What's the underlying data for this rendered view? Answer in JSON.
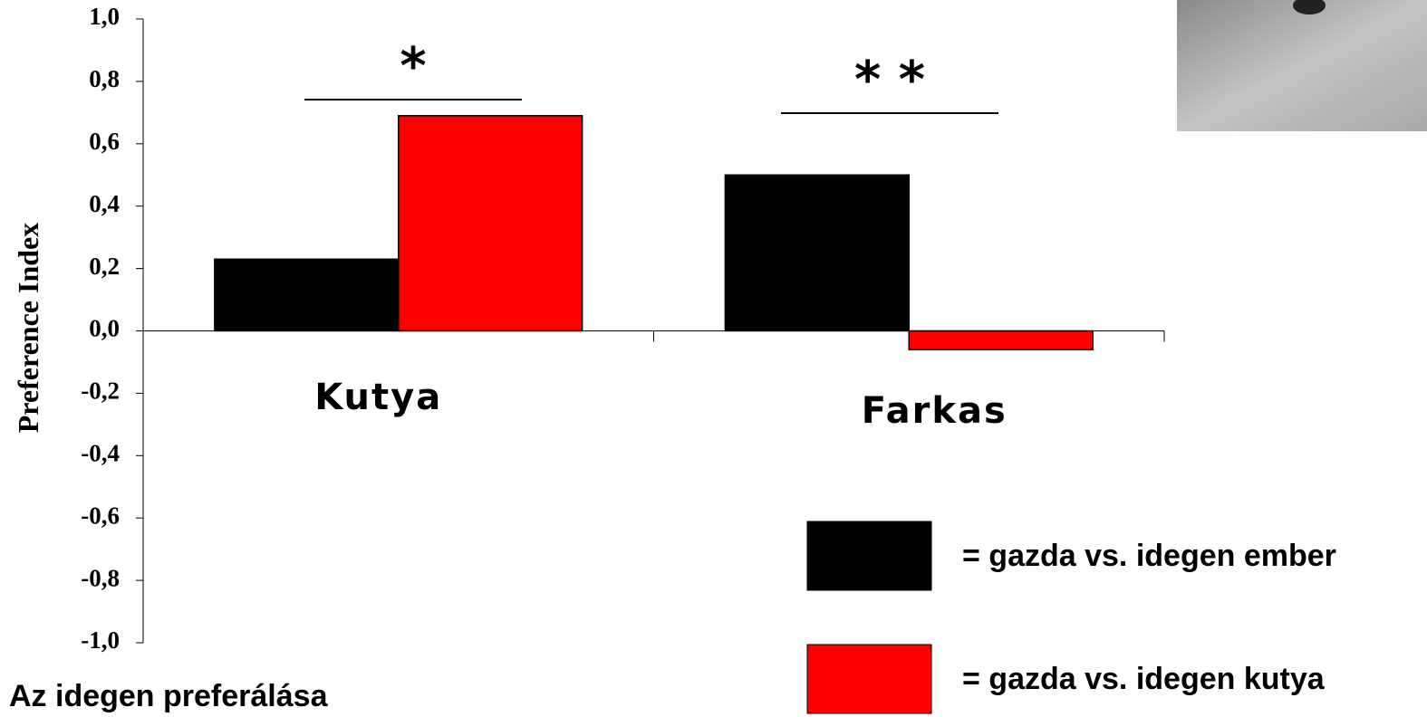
{
  "chart_data": {
    "type": "bar",
    "ylabel": "Preference Index",
    "categories": [
      "Kutya",
      "Farkas"
    ],
    "series": [
      {
        "name": "= gazda vs. idegen ember",
        "color": "#000000",
        "values": [
          0.23,
          0.5
        ]
      },
      {
        "name": "= gazda vs. idegen kutya",
        "color": "#ff0000",
        "values": [
          0.69,
          -0.06
        ]
      }
    ],
    "ylim": [
      -1,
      1
    ],
    "yticks": [
      {
        "value": -1,
        "label": "-1,0"
      },
      {
        "value": -0.8,
        "label": "-0,8"
      },
      {
        "value": -0.6,
        "label": "-0,6"
      },
      {
        "value": -0.4,
        "label": "-0,4"
      },
      {
        "value": -0.2,
        "label": "-0,2"
      },
      {
        "value": 0,
        "label": "0,0"
      },
      {
        "value": 0.2,
        "label": "0,2"
      },
      {
        "value": 0.4,
        "label": "0,4"
      },
      {
        "value": 0.6,
        "label": "0,6"
      },
      {
        "value": 0.8,
        "label": "0,8"
      },
      {
        "value": 1,
        "label": "1,0"
      }
    ],
    "annotations": [
      "*",
      "* *",
      "Az idegen preferálása"
    ],
    "legend": "lower right"
  }
}
